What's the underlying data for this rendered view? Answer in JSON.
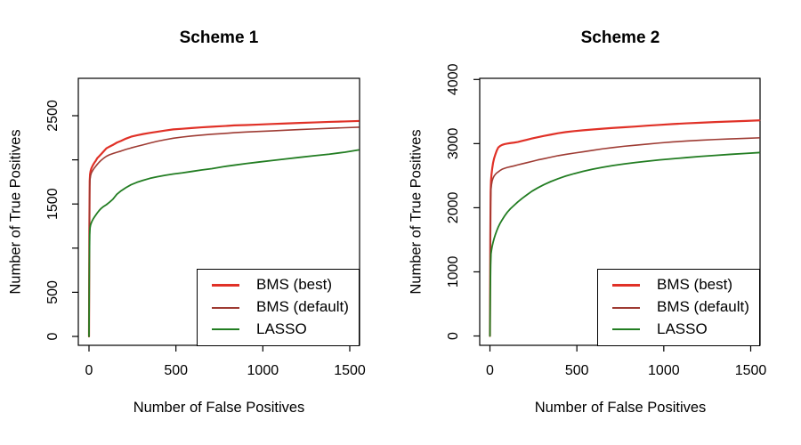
{
  "figure": {
    "background": "#ffffff",
    "text_color": "#000000"
  },
  "chart_data": [
    {
      "type": "line",
      "title": "Scheme 1",
      "xlabel": "Number of False Positives",
      "ylabel": "Number of True Positives",
      "xlim": [
        0,
        1550
      ],
      "ylim": [
        0,
        2500
      ],
      "grid": false,
      "legend_position": "bottom-right",
      "x_ticks": {
        "values": [
          0,
          500,
          1000,
          1500
        ],
        "labels": [
          "0",
          "500",
          "1000",
          "1500"
        ]
      },
      "y_ticks": {
        "values": [
          0,
          500,
          1000,
          1500,
          2000,
          2500
        ],
        "labels": [
          "0",
          "500",
          "",
          "1500",
          "",
          "2500"
        ]
      },
      "x": [
        0,
        2,
        4,
        6,
        9,
        13,
        18,
        24,
        31,
        39,
        48,
        58,
        70,
        84,
        100,
        118,
        138,
        160,
        185,
        212,
        242,
        275,
        311,
        350,
        392,
        437,
        485,
        536,
        590,
        647,
        707,
        770,
        836,
        905,
        977,
        1052,
        1130,
        1211,
        1295,
        1382,
        1472,
        1550
      ],
      "series": [
        {
          "name": "BMS (best)",
          "color": "#e03127",
          "values": [
            0,
            1200,
            1760,
            1835,
            1872,
            1900,
            1922,
            1945,
            1968,
            1990,
            2020,
            2040,
            2065,
            2095,
            2130,
            2150,
            2170,
            2195,
            2215,
            2240,
            2262,
            2278,
            2292,
            2305,
            2318,
            2332,
            2345,
            2352,
            2360,
            2368,
            2375,
            2382,
            2390,
            2394,
            2400,
            2406,
            2412,
            2418,
            2424,
            2430,
            2435,
            2440
          ]
        },
        {
          "name": "BMS (default)",
          "color": "#9e3b33",
          "values": [
            0,
            1150,
            1700,
            1780,
            1820,
            1848,
            1868,
            1888,
            1908,
            1928,
            1950,
            1972,
            1995,
            2018,
            2040,
            2058,
            2072,
            2085,
            2100,
            2118,
            2135,
            2152,
            2170,
            2190,
            2210,
            2228,
            2245,
            2258,
            2270,
            2280,
            2290,
            2298,
            2308,
            2315,
            2322,
            2328,
            2336,
            2343,
            2350,
            2357,
            2364,
            2370
          ]
        },
        {
          "name": "LASSO",
          "color": "#227d22",
          "values": [
            0,
            850,
            1150,
            1230,
            1262,
            1285,
            1308,
            1330,
            1352,
            1375,
            1400,
            1425,
            1450,
            1472,
            1492,
            1520,
            1555,
            1610,
            1650,
            1685,
            1718,
            1745,
            1768,
            1790,
            1808,
            1825,
            1840,
            1852,
            1868,
            1885,
            1900,
            1922,
            1940,
            1958,
            1975,
            1992,
            2010,
            2028,
            2046,
            2064,
            2087,
            2112
          ]
        }
      ]
    },
    {
      "type": "line",
      "title": "Scheme 2",
      "xlabel": "Number of False Positives",
      "ylabel": "Number of True Positives",
      "xlim": [
        0,
        1550
      ],
      "ylim": [
        0,
        4000
      ],
      "grid": false,
      "legend_position": "bottom-right",
      "x_ticks": {
        "values": [
          0,
          500,
          1000,
          1500
        ],
        "labels": [
          "0",
          "500",
          "1000",
          "1500"
        ]
      },
      "y_ticks": {
        "values": [
          0,
          1000,
          2000,
          3000,
          4000
        ],
        "labels": [
          "0",
          "1000",
          "2000",
          "3000",
          "4000"
        ]
      },
      "x": [
        0,
        2,
        4,
        6,
        9,
        13,
        18,
        24,
        31,
        39,
        48,
        58,
        70,
        84,
        100,
        118,
        138,
        160,
        185,
        212,
        242,
        275,
        311,
        350,
        392,
        437,
        485,
        536,
        590,
        647,
        707,
        770,
        836,
        905,
        977,
        1052,
        1130,
        1211,
        1295,
        1382,
        1472,
        1550
      ],
      "series": [
        {
          "name": "BMS (best)",
          "color": "#e03127",
          "values": [
            0,
            1500,
            2250,
            2420,
            2520,
            2610,
            2700,
            2770,
            2830,
            2890,
            2940,
            2962,
            2980,
            2992,
            3000,
            3008,
            3015,
            3025,
            3042,
            3060,
            3080,
            3100,
            3120,
            3140,
            3162,
            3180,
            3195,
            3208,
            3220,
            3232,
            3244,
            3255,
            3266,
            3280,
            3292,
            3305,
            3316,
            3326,
            3336,
            3345,
            3354,
            3362
          ]
        },
        {
          "name": "BMS (default)",
          "color": "#9e3b33",
          "values": [
            0,
            1400,
            2100,
            2280,
            2360,
            2420,
            2462,
            2495,
            2520,
            2542,
            2560,
            2580,
            2600,
            2615,
            2628,
            2640,
            2652,
            2668,
            2685,
            2702,
            2722,
            2745,
            2765,
            2788,
            2812,
            2832,
            2852,
            2872,
            2895,
            2918,
            2938,
            2958,
            2975,
            2992,
            3010,
            3026,
            3040,
            3052,
            3064,
            3074,
            3082,
            3090
          ]
        },
        {
          "name": "LASSO",
          "color": "#227d22",
          "values": [
            0,
            700,
            1100,
            1280,
            1340,
            1400,
            1460,
            1520,
            1580,
            1640,
            1700,
            1755,
            1810,
            1870,
            1930,
            1985,
            2035,
            2090,
            2145,
            2200,
            2258,
            2310,
            2360,
            2408,
            2452,
            2495,
            2532,
            2568,
            2600,
            2630,
            2658,
            2682,
            2705,
            2726,
            2746,
            2764,
            2782,
            2800,
            2816,
            2832,
            2847,
            2860
          ]
        }
      ]
    }
  ]
}
